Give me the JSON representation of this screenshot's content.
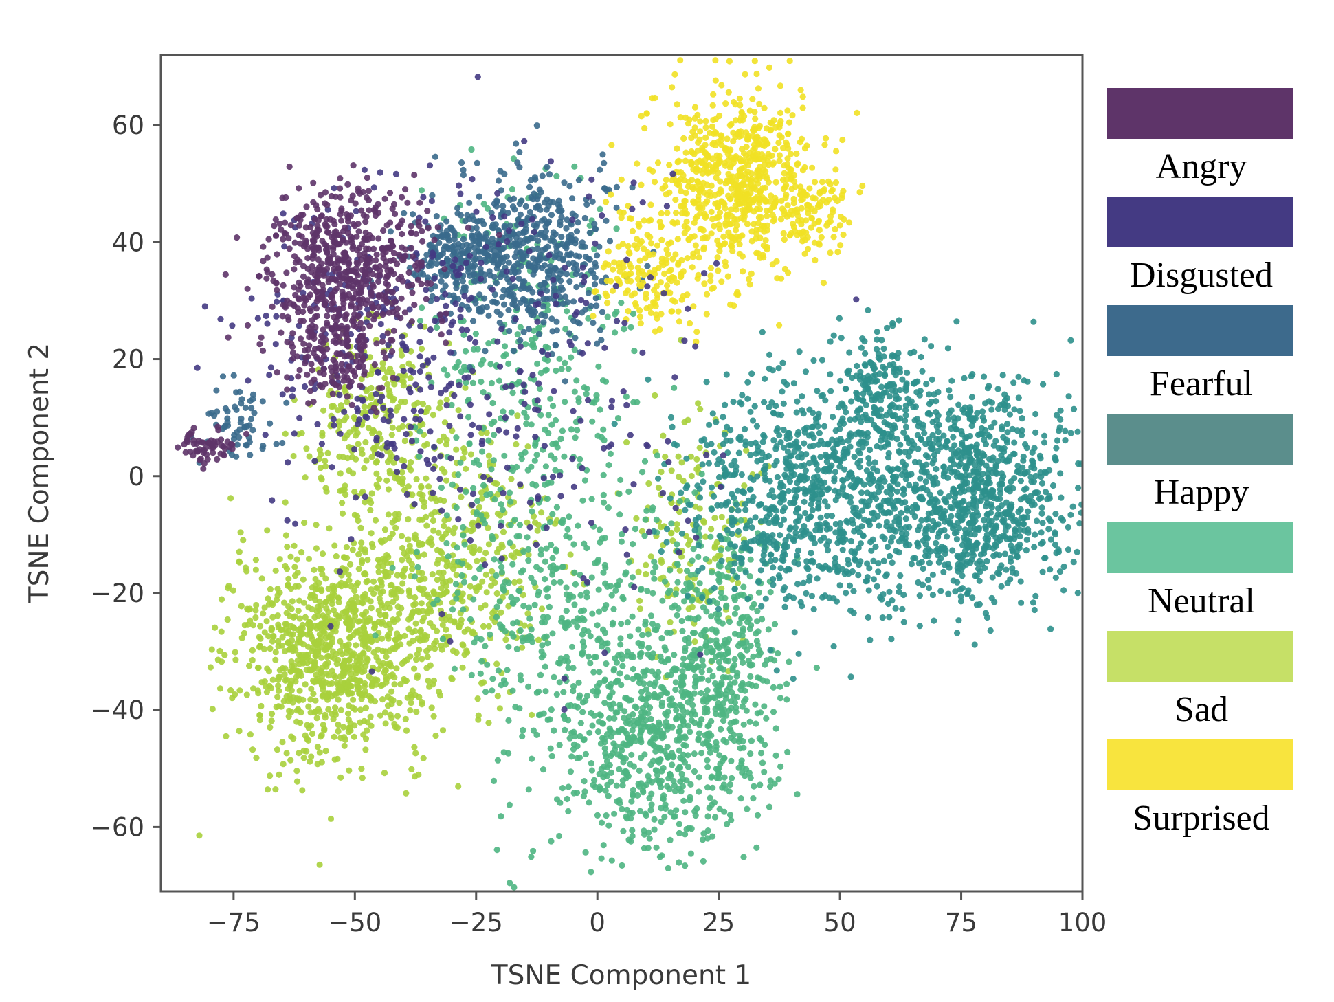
{
  "chart_data": {
    "type": "scatter",
    "xlabel": "TSNE Component 1",
    "ylabel": "TSNE Component 2",
    "xlim": [
      -90,
      100
    ],
    "ylim": [
      -71,
      72
    ],
    "x_ticks": [
      -75,
      -50,
      -25,
      0,
      25,
      50,
      75,
      100
    ],
    "x_tick_labels": [
      "−75",
      "−50",
      "−25",
      "0",
      "25",
      "50",
      "75",
      "100"
    ],
    "y_ticks": [
      60,
      40,
      20,
      0,
      -20,
      -40,
      -60
    ],
    "y_tick_labels": [
      "60",
      "40",
      "20",
      "0",
      "−20",
      "−40",
      "−60"
    ],
    "grid": false,
    "legend_position": "right",
    "series": [
      {
        "name": "Angry",
        "color": "#5e3469",
        "clusters": [
          {
            "cx": -52,
            "cy": 35,
            "sx": 8,
            "sy": 7,
            "n": 600
          },
          {
            "cx": -55,
            "cy": 20,
            "sx": 5,
            "sy": 4,
            "n": 120
          },
          {
            "cx": -80,
            "cy": 5,
            "sx": 3,
            "sy": 1.5,
            "n": 60
          }
        ]
      },
      {
        "name": "Disgusted",
        "color": "#443a83",
        "clusters": [
          {
            "cx": -45,
            "cy": 20,
            "sx": 14,
            "sy": 14,
            "n": 250
          },
          {
            "cx": -15,
            "cy": 15,
            "sx": 20,
            "sy": 20,
            "n": 200
          }
        ]
      },
      {
        "name": "Fearful",
        "color": "#3a6a8c",
        "clusters": [
          {
            "cx": -13,
            "cy": 38,
            "sx": 8,
            "sy": 7,
            "n": 500
          },
          {
            "cx": -30,
            "cy": 37,
            "sx": 5,
            "sy": 4,
            "n": 200
          },
          {
            "cx": -75,
            "cy": 9,
            "sx": 4,
            "sy": 4,
            "n": 60
          }
        ]
      },
      {
        "name": "Happy",
        "color": "#2d908c",
        "clusters": [
          {
            "cx": 45,
            "cy": -3,
            "sx": 13,
            "sy": 10,
            "n": 900
          },
          {
            "cx": 78,
            "cy": -3,
            "sx": 10,
            "sy": 9,
            "n": 900
          },
          {
            "cx": 58,
            "cy": 15,
            "sx": 4,
            "sy": 5,
            "n": 150
          }
        ]
      },
      {
        "name": "Neutral",
        "color": "#4eb582",
        "clusters": [
          {
            "cx": 12,
            "cy": -45,
            "sx": 11,
            "sy": 10,
            "n": 700
          },
          {
            "cx": 25,
            "cy": -28,
            "sx": 6,
            "sy": 10,
            "n": 300
          },
          {
            "cx": -8,
            "cy": -20,
            "sx": 12,
            "sy": 15,
            "n": 400
          },
          {
            "cx": -15,
            "cy": 20,
            "sx": 10,
            "sy": 15,
            "n": 300
          }
        ]
      },
      {
        "name": "Sad",
        "color": "#a9d03c",
        "clusters": [
          {
            "cx": -55,
            "cy": -30,
            "sx": 10,
            "sy": 9,
            "n": 900
          },
          {
            "cx": -32,
            "cy": -15,
            "sx": 10,
            "sy": 12,
            "n": 500
          },
          {
            "cx": -45,
            "cy": 10,
            "sx": 8,
            "sy": 8,
            "n": 250
          },
          {
            "cx": 20,
            "cy": -10,
            "sx": 6,
            "sy": 10,
            "n": 150
          }
        ]
      },
      {
        "name": "Surprised",
        "color": "#f1e125",
        "clusters": [
          {
            "cx": 28,
            "cy": 50,
            "sx": 8,
            "sy": 8,
            "n": 700
          },
          {
            "cx": 10,
            "cy": 35,
            "sx": 5,
            "sy": 5,
            "n": 150
          },
          {
            "cx": 45,
            "cy": 45,
            "sx": 3,
            "sy": 4,
            "n": 80
          }
        ]
      }
    ]
  },
  "legend": {
    "entries": [
      {
        "label": "Angry",
        "color": "#5e3469"
      },
      {
        "label": "Disgusted",
        "color": "#443a83"
      },
      {
        "label": "Fearful",
        "color": "#3d6a8c"
      },
      {
        "label": "Happy",
        "color": "#5b8e8c"
      },
      {
        "label": "Neutral",
        "color": "#6bc59f"
      },
      {
        "label": "Sad",
        "color": "#c6e067"
      },
      {
        "label": "Surprised",
        "color": "#f8e43e"
      }
    ]
  }
}
